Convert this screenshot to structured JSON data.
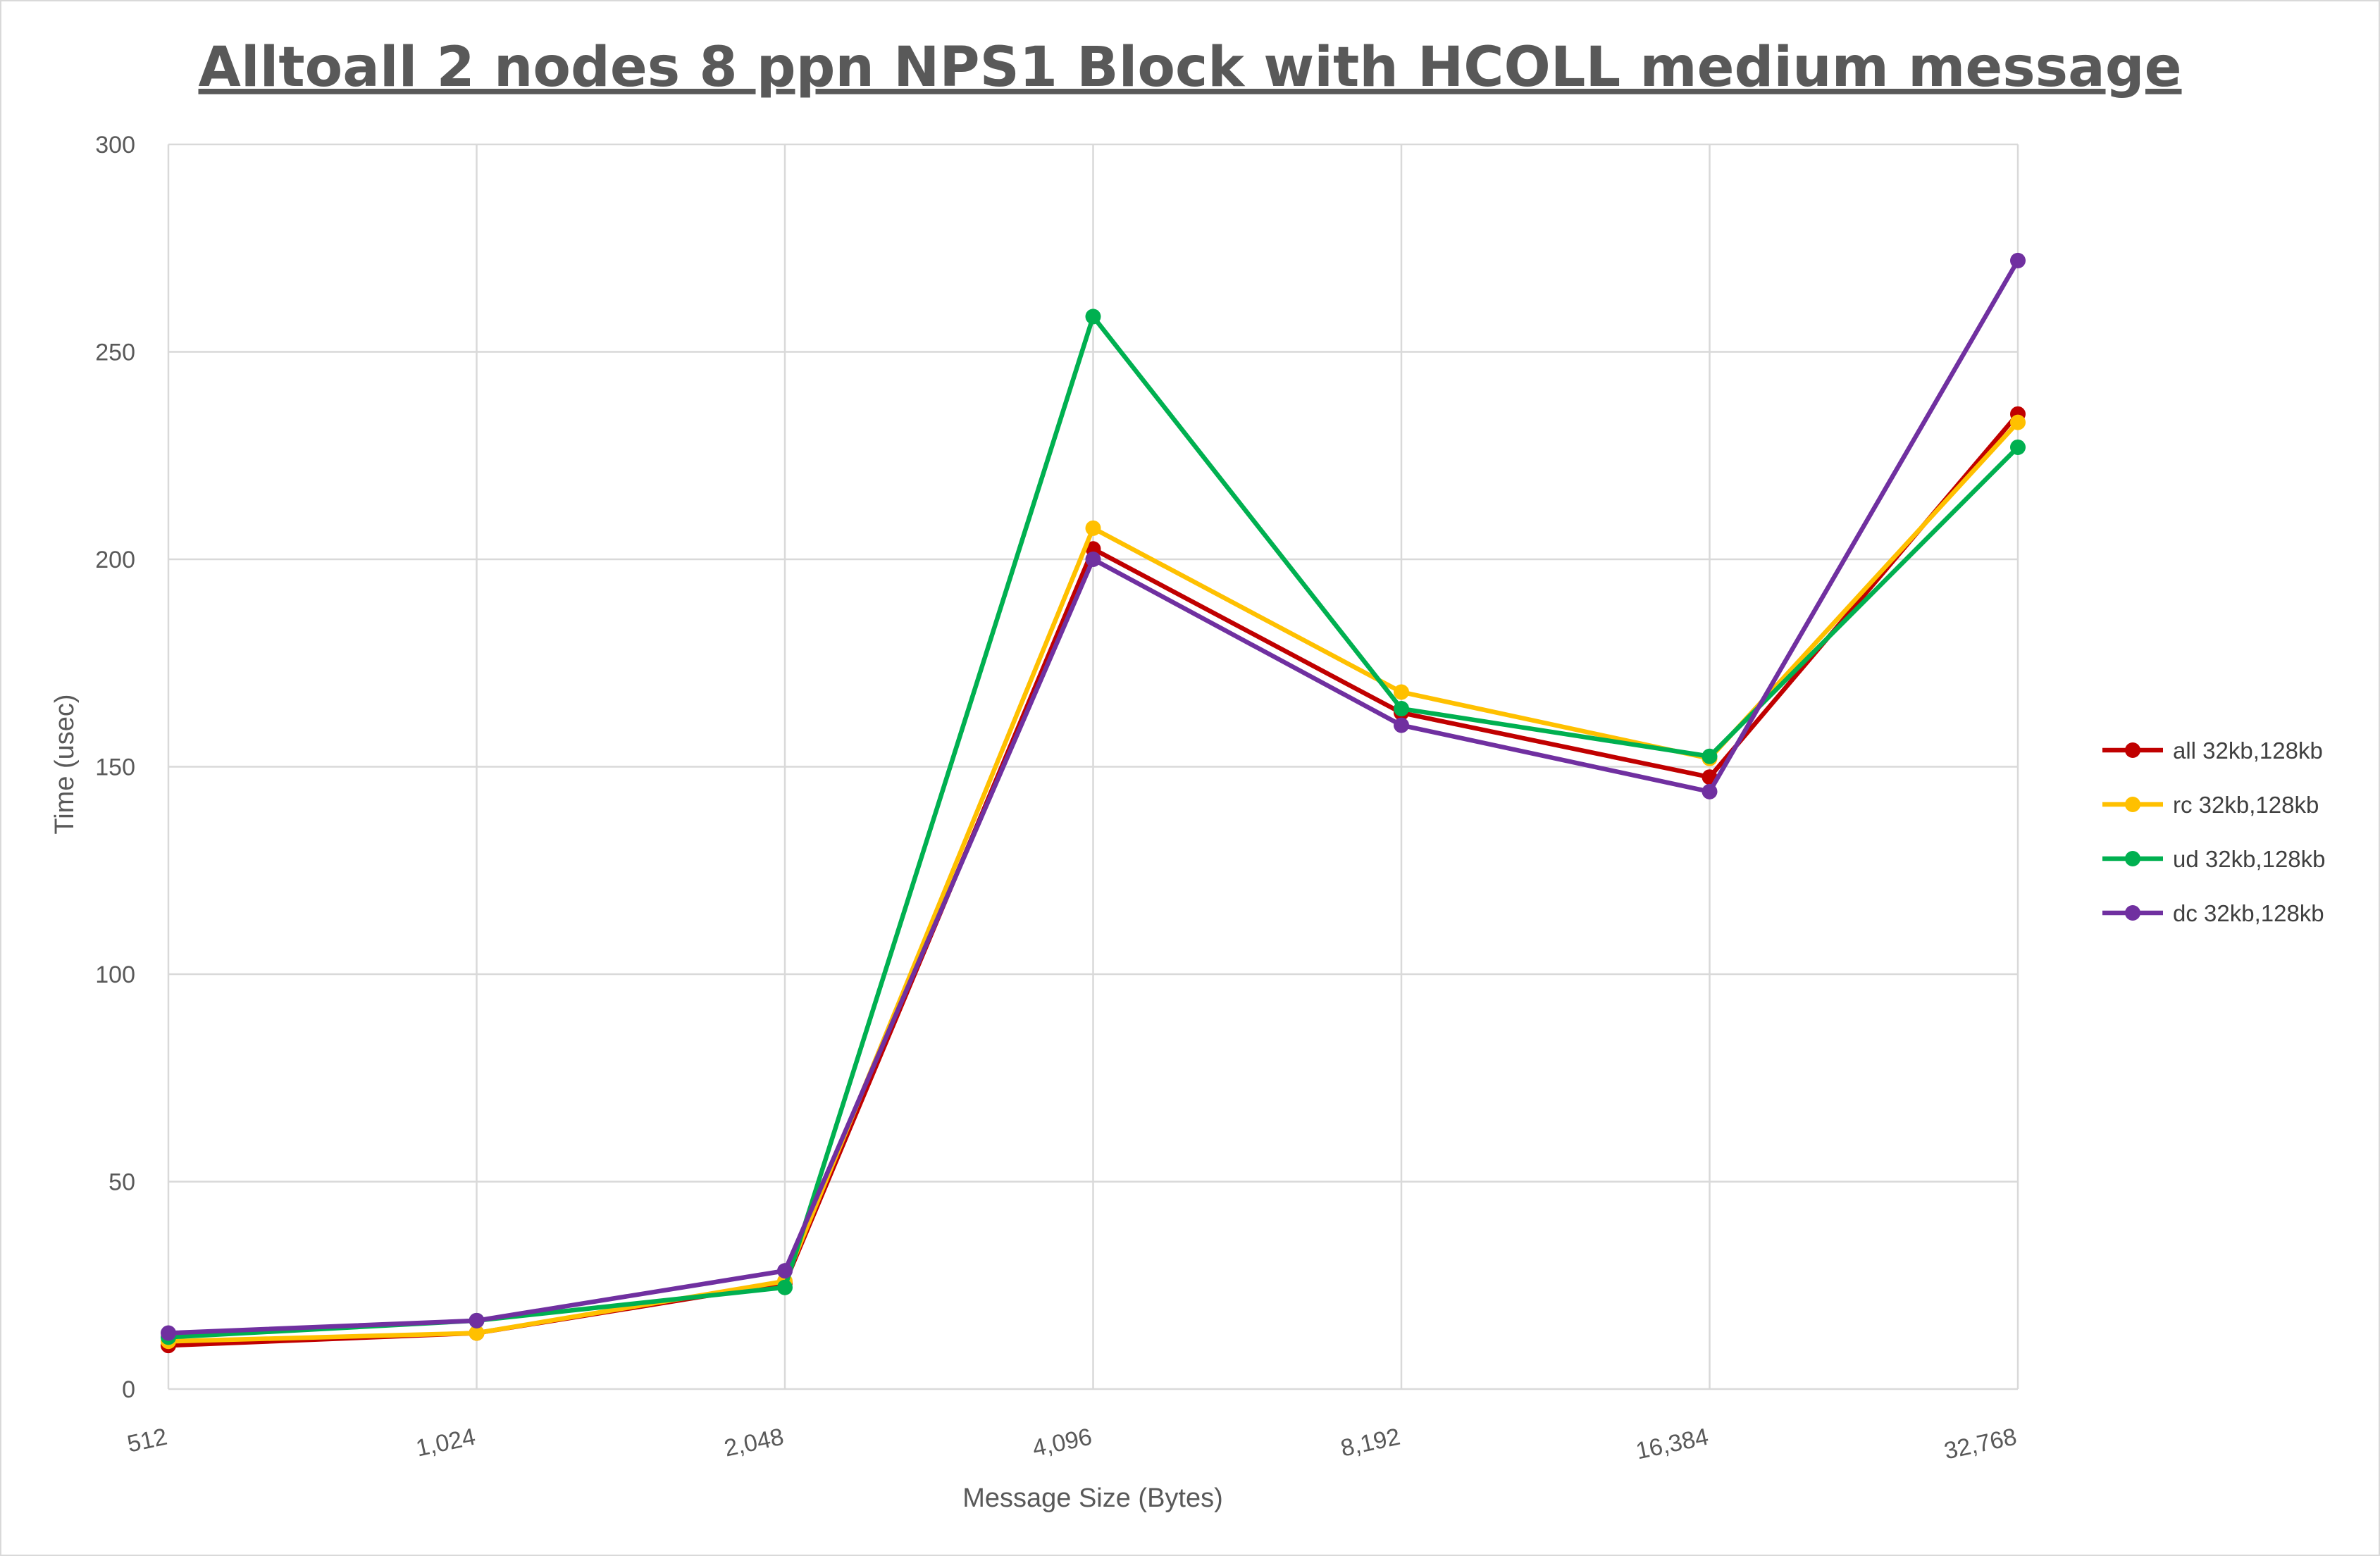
{
  "chart_data": {
    "type": "line",
    "title": "Alltoall 2 nodes 8 ppn NPS1 Block with HCOLL medium message",
    "xlabel": "Message Size (Bytes)",
    "ylabel": "Time (usec)",
    "categories": [
      "512",
      "1,024",
      "2,048",
      "4,096",
      "8,192",
      "16,384",
      "32,768"
    ],
    "ylim": [
      0,
      300
    ],
    "yticks": [
      "0",
      "50",
      "100",
      "150",
      "200",
      "250",
      "300"
    ],
    "grid": true,
    "legend_position": "right",
    "series": [
      {
        "name": "all 32kb,128kb",
        "color": "#c00000",
        "values": [
          10.5,
          13.5,
          25.5,
          202.5,
          163,
          147.5,
          235
        ]
      },
      {
        "name": "rc 32kb,128kb",
        "color": "#ffc000",
        "values": [
          11.5,
          13.5,
          26,
          207.5,
          168,
          152,
          233
        ]
      },
      {
        "name": "ud 32kb,128kb",
        "color": "#00b050",
        "values": [
          12.5,
          16.5,
          24.5,
          258.5,
          164,
          152.5,
          227
        ]
      },
      {
        "name": "dc 32kb,128kb",
        "color": "#7030a0",
        "values": [
          13.5,
          16.5,
          28.5,
          200,
          160,
          144,
          272
        ]
      }
    ]
  }
}
